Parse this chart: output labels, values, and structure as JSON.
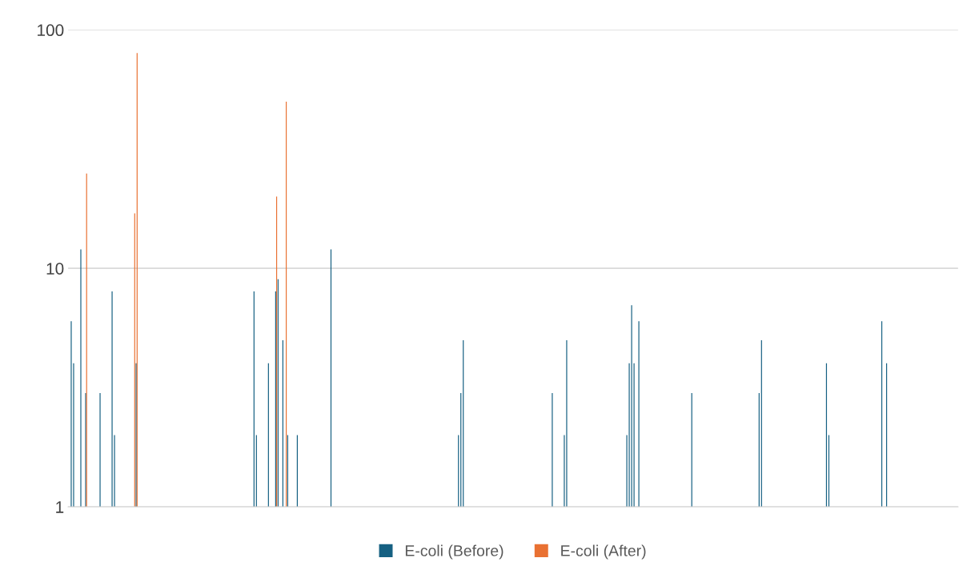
{
  "chart_data": {
    "type": "bar",
    "log": true,
    "categories": [
      null,
      null,
      null,
      null,
      null,
      null,
      null,
      null,
      null,
      null,
      null,
      null,
      null,
      null,
      null,
      null,
      null,
      null,
      null,
      null,
      null,
      null,
      null,
      null,
      null,
      null,
      null,
      null,
      null,
      null,
      null,
      null,
      null,
      null,
      null,
      null,
      null,
      null,
      null,
      null,
      null,
      null,
      null,
      null,
      null,
      null,
      null,
      null,
      null,
      null,
      null,
      null,
      null,
      null,
      null,
      null,
      null,
      null,
      null,
      null,
      null,
      null,
      null,
      null,
      null,
      null,
      null,
      null,
      null,
      null,
      null,
      null,
      null,
      null,
      null,
      null,
      null,
      null,
      null,
      null,
      null,
      null,
      null,
      null,
      null,
      null,
      null,
      null,
      null,
      null,
      null,
      null,
      null,
      null,
      null,
      null,
      null,
      null,
      null,
      null,
      null,
      null,
      null,
      null,
      null,
      null,
      null,
      null,
      null,
      null,
      null,
      null,
      null,
      null,
      null,
      null,
      null,
      null,
      null,
      null,
      null,
      null,
      null,
      null,
      null,
      null,
      null,
      null,
      null,
      null,
      null,
      null,
      null,
      null,
      null,
      null,
      null,
      null,
      null,
      null,
      null,
      null,
      null,
      null,
      null,
      null,
      null,
      null,
      null,
      null,
      null,
      null,
      null,
      null,
      null,
      null,
      null,
      null,
      null,
      null,
      null,
      null,
      null,
      null,
      null,
      null,
      null,
      null,
      null,
      null,
      null,
      null,
      null,
      null,
      null,
      null,
      null,
      null,
      null,
      null,
      null,
      null,
      null,
      null,
      null,
      null,
      null,
      null,
      null,
      null,
      null,
      null,
      null,
      null,
      null,
      null,
      null,
      null,
      null,
      null,
      null,
      null,
      null,
      null,
      null,
      null,
      null,
      null,
      null,
      null,
      null,
      null,
      null,
      null,
      null,
      null,
      null,
      null,
      null,
      null,
      null,
      null,
      null,
      null,
      null,
      null,
      null,
      null,
      null,
      null,
      null,
      null,
      null,
      null,
      null,
      null,
      null,
      null,
      null,
      null,
      null,
      null,
      null,
      null,
      null,
      null,
      null,
      null,
      null,
      null,
      null,
      null,
      null,
      null,
      null,
      null,
      null,
      null,
      null,
      null,
      null,
      null,
      null,
      null,
      null,
      null,
      null,
      null,
      null,
      null,
      null,
      null,
      null,
      null,
      null,
      null,
      null,
      null,
      null,
      null,
      null,
      null,
      null,
      null,
      null,
      null,
      null,
      null,
      null,
      null,
      null,
      null,
      null,
      null,
      null,
      null,
      null,
      null,
      null,
      null,
      null,
      null,
      null,
      null,
      null,
      null,
      null,
      null,
      null,
      null,
      null,
      null,
      null,
      null,
      null,
      null,
      null,
      null,
      null,
      null,
      null,
      null,
      null,
      null,
      null,
      null,
      null,
      null,
      null,
      null,
      null,
      null,
      null,
      null,
      null,
      null,
      null,
      null,
      null,
      null,
      null,
      null,
      null,
      null,
      null,
      null,
      null,
      null,
      null,
      null,
      null,
      null,
      null,
      null,
      null,
      null,
      null,
      null,
      null,
      null,
      null,
      null,
      null,
      null,
      null,
      null,
      null,
      null,
      null,
      null
    ],
    "series": [
      {
        "name": "E-coli (Before)",
        "color": "#156082",
        "values": [
          null,
          6,
          4,
          null,
          null,
          12,
          null,
          3,
          null,
          null,
          null,
          null,
          null,
          3,
          null,
          null,
          null,
          null,
          8,
          2,
          null,
          null,
          null,
          null,
          null,
          null,
          null,
          null,
          4,
          null,
          null,
          null,
          null,
          null,
          null,
          null,
          null,
          null,
          null,
          null,
          null,
          null,
          null,
          null,
          null,
          null,
          null,
          null,
          null,
          null,
          null,
          null,
          null,
          null,
          null,
          null,
          null,
          null,
          null,
          null,
          null,
          null,
          null,
          null,
          null,
          null,
          null,
          null,
          null,
          null,
          null,
          null,
          null,
          null,
          null,
          null,
          null,
          8,
          2,
          null,
          null,
          null,
          null,
          4,
          null,
          null,
          8,
          9,
          null,
          5,
          null,
          2,
          null,
          null,
          null,
          2,
          null,
          null,
          null,
          null,
          null,
          null,
          null,
          null,
          null,
          null,
          null,
          null,
          null,
          12,
          null,
          null,
          null,
          null,
          null,
          null,
          null,
          null,
          null,
          null,
          null,
          null,
          null,
          null,
          null,
          null,
          null,
          null,
          null,
          null,
          null,
          null,
          null,
          null,
          null,
          null,
          null,
          null,
          null,
          null,
          null,
          null,
          null,
          null,
          null,
          null,
          null,
          null,
          null,
          null,
          null,
          null,
          null,
          null,
          null,
          null,
          null,
          null,
          null,
          null,
          null,
          null,
          2,
          3,
          5,
          null,
          null,
          null,
          null,
          null,
          null,
          null,
          null,
          null,
          null,
          null,
          null,
          null,
          null,
          null,
          null,
          null,
          null,
          null,
          null,
          null,
          null,
          null,
          null,
          null,
          null,
          null,
          null,
          null,
          null,
          null,
          null,
          null,
          null,
          null,
          null,
          3,
          null,
          null,
          null,
          null,
          2,
          5,
          null,
          null,
          null,
          null,
          null,
          null,
          null,
          null,
          null,
          null,
          null,
          null,
          null,
          null,
          null,
          null,
          null,
          null,
          null,
          null,
          null,
          null,
          null,
          null,
          2,
          4,
          7,
          4,
          null,
          6,
          null,
          null,
          null,
          null,
          null,
          null,
          null,
          null,
          null,
          null,
          null,
          null,
          null,
          null,
          null,
          null,
          null,
          null,
          null,
          null,
          null,
          3,
          null,
          null,
          null,
          null,
          null,
          null,
          null,
          null,
          null,
          null,
          null,
          null,
          null,
          null,
          null,
          null,
          null,
          null,
          null,
          null,
          null,
          null,
          null,
          null,
          null,
          null,
          null,
          3,
          5,
          null,
          null,
          null,
          null,
          null,
          null,
          null,
          null,
          null,
          null,
          null,
          null,
          null,
          null,
          null,
          null,
          null,
          null,
          null,
          null,
          null,
          null,
          null,
          null,
          null,
          null,
          4,
          2,
          null,
          null,
          null,
          null,
          null,
          null,
          null,
          null,
          null,
          null,
          null,
          null,
          null,
          null,
          null,
          null,
          null,
          null,
          null,
          null,
          null,
          6,
          null,
          4,
          null,
          null,
          null,
          null,
          null,
          null,
          null,
          null,
          null,
          null,
          null,
          null,
          null,
          null,
          null,
          null,
          null,
          null,
          null,
          null,
          null,
          null,
          null,
          null,
          null,
          null,
          null,
          null,
          null
        ]
      },
      {
        "name": "E-coli (After)",
        "color": "#e97132",
        "values": [
          null,
          null,
          null,
          null,
          null,
          null,
          null,
          25,
          null,
          null,
          null,
          null,
          null,
          null,
          null,
          null,
          null,
          null,
          null,
          null,
          null,
          null,
          null,
          null,
          null,
          null,
          null,
          17,
          80,
          null,
          null,
          null,
          null,
          null,
          null,
          null,
          null,
          null,
          null,
          null,
          null,
          null,
          null,
          null,
          null,
          null,
          null,
          null,
          null,
          null,
          null,
          null,
          null,
          null,
          null,
          null,
          null,
          null,
          null,
          null,
          null,
          null,
          null,
          null,
          null,
          null,
          null,
          null,
          null,
          null,
          null,
          null,
          null,
          null,
          null,
          null,
          null,
          null,
          null,
          null,
          null,
          null,
          null,
          null,
          null,
          null,
          20,
          null,
          null,
          null,
          50,
          null,
          null,
          null,
          null,
          null,
          null,
          null,
          null,
          null,
          null,
          null,
          null,
          null,
          null,
          null,
          null,
          null,
          null,
          null,
          null,
          null,
          null,
          null,
          null,
          null,
          null,
          null,
          null,
          null,
          null,
          null,
          null,
          null,
          null,
          null,
          null,
          null,
          null,
          null,
          null,
          null,
          null,
          null,
          null,
          null,
          null,
          null,
          null,
          null,
          null,
          null,
          null,
          null,
          null,
          null,
          null,
          null,
          null,
          null,
          null,
          null,
          null,
          null,
          null,
          null,
          null,
          null,
          null,
          null,
          null,
          null,
          null,
          null,
          null,
          null,
          null,
          null,
          null,
          null,
          null,
          null,
          null,
          null,
          null,
          null,
          null,
          null,
          null,
          null,
          null,
          null,
          null,
          null,
          null,
          null,
          null,
          null,
          null,
          null,
          null,
          null,
          null,
          null,
          null,
          null,
          null,
          null,
          null,
          null,
          null,
          null,
          null,
          null,
          null,
          null,
          null,
          null,
          null,
          null,
          null,
          null,
          null,
          null,
          null,
          null,
          null,
          null,
          null,
          null,
          null,
          null,
          null,
          null,
          null,
          null,
          null,
          null,
          null,
          null,
          null,
          null,
          null,
          null,
          null,
          null,
          null,
          null,
          null,
          null,
          null,
          null,
          null,
          null,
          null,
          null,
          null,
          null,
          null,
          null,
          null,
          null,
          null,
          null,
          null,
          null,
          null,
          null,
          null,
          null,
          null,
          null,
          null,
          null,
          null,
          null,
          null,
          null,
          null,
          null,
          null,
          null,
          null,
          null,
          null,
          null,
          null,
          null,
          null,
          null,
          null,
          null,
          null,
          null,
          null,
          null,
          null,
          null,
          null,
          null,
          null,
          null,
          null,
          null,
          null,
          null,
          null,
          null,
          null,
          null,
          null,
          null,
          null,
          null,
          null,
          null,
          null,
          null,
          null,
          null,
          null,
          null,
          null,
          null,
          null,
          null,
          null,
          null,
          null,
          null,
          null,
          null,
          null,
          null,
          null,
          null,
          null,
          null,
          null,
          null,
          null,
          null,
          null,
          null,
          null,
          null,
          null,
          null,
          null,
          null,
          null,
          null,
          null,
          null,
          null,
          null,
          null,
          null,
          null,
          null,
          null,
          null,
          null,
          null,
          null,
          null,
          null,
          null,
          null,
          null,
          null,
          null,
          null,
          null,
          null,
          null,
          null,
          null,
          null,
          null
        ]
      }
    ],
    "ylim": [
      1,
      100
    ],
    "yticks": [
      1,
      10,
      100
    ],
    "grid": "y",
    "legend": "bottom",
    "tick_labels": "y"
  }
}
